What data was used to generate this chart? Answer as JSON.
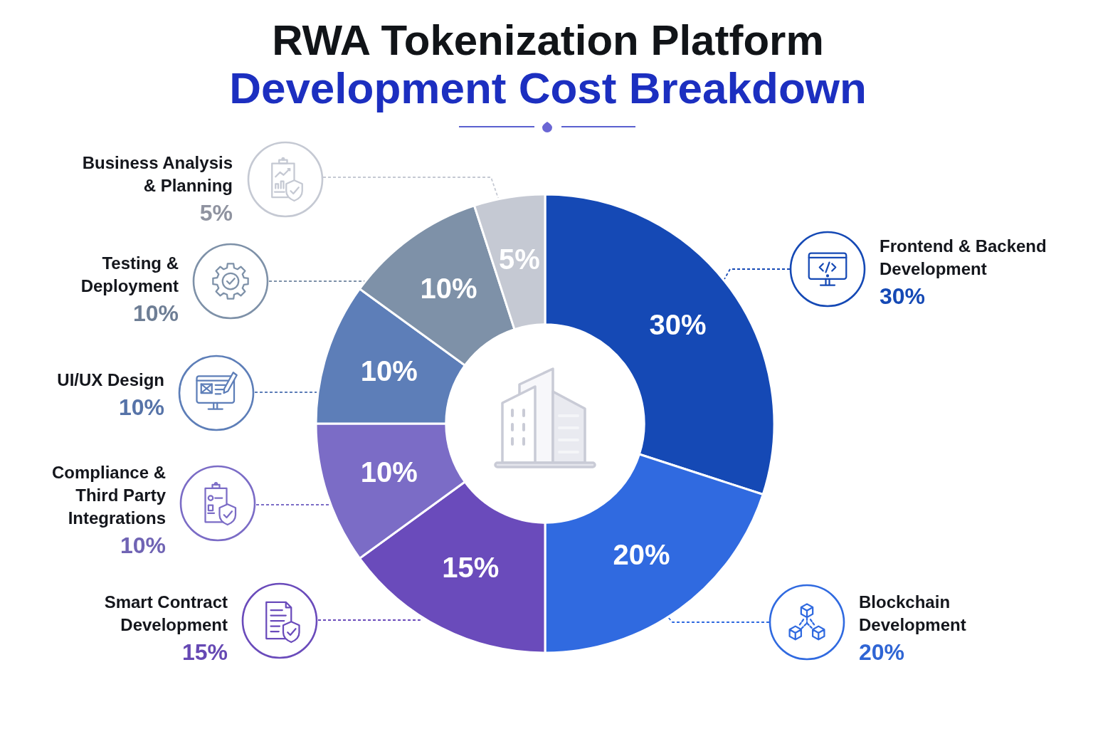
{
  "chart_data": {
    "type": "donut",
    "title": "RWA Tokenization Platform",
    "subtitle": "Development Cost Breakdown",
    "categories": [
      "Frontend & Backend Development",
      "Blockchain Development",
      "Smart Contract Development",
      "Compliance & Third Party Integrations",
      "UI/UX Design",
      "Testing & Deployment",
      "Business Analysis & Planning"
    ],
    "values": [
      30,
      20,
      15,
      10,
      10,
      10,
      5
    ],
    "colors": [
      "#1549b5",
      "#306ae0",
      "#6a4bbb",
      "#7b6cc6",
      "#5d7eb8",
      "#7e91a8",
      "#c5c9d3"
    ],
    "value_labels": [
      "30%",
      "20%",
      "15%",
      "10%",
      "10%",
      "10%",
      "5%"
    ],
    "legend": "left"
  }
}
